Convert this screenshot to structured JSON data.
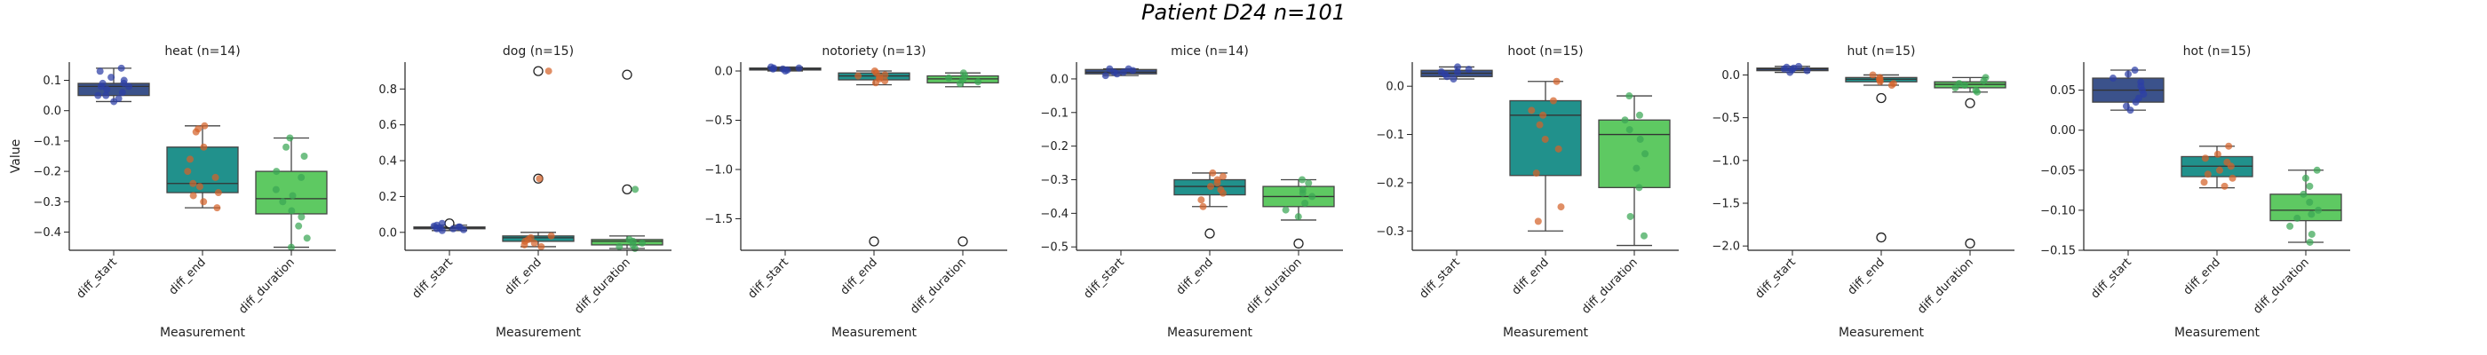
{
  "figure": {
    "suptitle": "Patient D24 n=101",
    "y_label": "Value",
    "x_label": "Measurement"
  },
  "colors": {
    "diff_start": "#3b528b",
    "diff_end": "#21918c",
    "diff_duration": "#5ec962",
    "start_points": "#2c3fa6",
    "end_points": "#d4622a",
    "duration_points": "#3aa655"
  },
  "chart_data": [
    {
      "type": "box",
      "title": "heat (n=14)",
      "categories": [
        "diff_start",
        "diff_end",
        "diff_duration"
      ],
      "ylim": [
        -0.46,
        0.16
      ],
      "yticks": [
        0.1,
        0.0,
        -0.1,
        -0.2,
        -0.3,
        -0.4
      ],
      "ytick_labels": [
        "0.1",
        "0.0",
        "−0.1",
        "−0.2",
        "−0.3",
        "−0.4"
      ],
      "boxes": [
        {
          "q1": 0.05,
          "median": 0.08,
          "q3": 0.09,
          "whislo": 0.03,
          "whishi": 0.14,
          "fliers": []
        },
        {
          "q1": -0.27,
          "median": -0.24,
          "q3": -0.12,
          "whislo": -0.32,
          "whishi": -0.05,
          "fliers": []
        },
        {
          "q1": -0.34,
          "median": -0.29,
          "q3": -0.2,
          "whislo": -0.45,
          "whishi": -0.09,
          "fliers": []
        }
      ],
      "points": [
        [
          0.14,
          0.13,
          0.11,
          0.1,
          0.09,
          0.09,
          0.08,
          0.08,
          0.07,
          0.06,
          0.05,
          0.05,
          0.04,
          0.03
        ],
        [
          -0.05,
          -0.06,
          -0.07,
          -0.12,
          -0.16,
          -0.2,
          -0.22,
          -0.24,
          -0.25,
          -0.27,
          -0.28,
          -0.3,
          -0.32
        ],
        [
          -0.09,
          -0.12,
          -0.15,
          -0.2,
          -0.22,
          -0.26,
          -0.28,
          -0.3,
          -0.33,
          -0.35,
          -0.38,
          -0.42,
          -0.45
        ]
      ]
    },
    {
      "type": "box",
      "title": "dog (n=15)",
      "categories": [
        "diff_start",
        "diff_end",
        "diff_duration"
      ],
      "ylim": [
        -0.1,
        0.95
      ],
      "yticks": [
        0.8,
        0.6,
        0.4,
        0.2,
        0.0
      ],
      "ytick_labels": [
        "0.8",
        "0.6",
        "0.4",
        "0.2",
        "0.0"
      ],
      "boxes": [
        {
          "q1": 0.02,
          "median": 0.025,
          "q3": 0.03,
          "whislo": 0.01,
          "whishi": 0.04,
          "fliers": [
            0.05
          ]
        },
        {
          "q1": -0.05,
          "median": -0.03,
          "q3": -0.02,
          "whislo": -0.08,
          "whishi": 0.0,
          "fliers": [
            0.9,
            0.3
          ]
        },
        {
          "q1": -0.07,
          "median": -0.05,
          "q3": -0.04,
          "whislo": -0.09,
          "whishi": -0.02,
          "fliers": [
            0.88,
            0.24
          ]
        }
      ],
      "points": [
        [
          0.01,
          0.015,
          0.02,
          0.02,
          0.025,
          0.03,
          0.03,
          0.035,
          0.04,
          0.05
        ],
        [
          0.9,
          0.3,
          -0.02,
          -0.03,
          -0.04,
          -0.05,
          -0.06,
          -0.07,
          -0.08
        ],
        [
          0.24,
          -0.04,
          -0.05,
          -0.06,
          -0.07,
          -0.08,
          -0.09
        ]
      ]
    },
    {
      "type": "box",
      "title": "notoriety (n=13)",
      "categories": [
        "diff_start",
        "diff_end",
        "diff_duration"
      ],
      "ylim": [
        -1.82,
        0.09
      ],
      "yticks": [
        0.0,
        -0.5,
        -1.0,
        -1.5
      ],
      "ytick_labels": [
        "0.0",
        "−0.5",
        "−1.0",
        "−1.5"
      ],
      "boxes": [
        {
          "q1": 0.01,
          "median": 0.02,
          "q3": 0.03,
          "whislo": 0.0,
          "whishi": 0.04,
          "fliers": []
        },
        {
          "q1": -0.09,
          "median": -0.05,
          "q3": -0.02,
          "whislo": -0.14,
          "whishi": 0.0,
          "fliers": [
            -1.73
          ]
        },
        {
          "q1": -0.12,
          "median": -0.08,
          "q3": -0.05,
          "whislo": -0.16,
          "whishi": -0.02,
          "fliers": [
            -1.73
          ]
        }
      ],
      "points": [
        [
          0.0,
          0.01,
          0.02,
          0.02,
          0.03,
          0.03,
          0.04
        ],
        [
          0.0,
          -0.02,
          -0.04,
          -0.05,
          -0.06,
          -0.08,
          -0.1,
          -0.12
        ],
        [
          -0.02,
          -0.05,
          -0.07,
          -0.09,
          -0.11,
          -0.13
        ]
      ]
    },
    {
      "type": "box",
      "title": "mice (n=14)",
      "categories": [
        "diff_start",
        "diff_end",
        "diff_duration"
      ],
      "ylim": [
        -0.51,
        0.05
      ],
      "yticks": [
        0.0,
        -0.1,
        -0.2,
        -0.3,
        -0.4,
        -0.5
      ],
      "ytick_labels": [
        "0.0",
        "−0.1",
        "−0.2",
        "−0.3",
        "−0.4",
        "−0.5"
      ],
      "boxes": [
        {
          "q1": 0.015,
          "median": 0.02,
          "q3": 0.028,
          "whislo": 0.01,
          "whishi": 0.03,
          "fliers": []
        },
        {
          "q1": -0.345,
          "median": -0.32,
          "q3": -0.3,
          "whislo": -0.38,
          "whishi": -0.28,
          "fliers": [
            -0.46
          ]
        },
        {
          "q1": -0.38,
          "median": -0.35,
          "q3": -0.32,
          "whislo": -0.42,
          "whishi": -0.3,
          "fliers": [
            -0.49
          ]
        }
      ],
      "points": [
        [
          0.01,
          0.015,
          0.02,
          0.02,
          0.025,
          0.03,
          0.03
        ],
        [
          -0.28,
          -0.29,
          -0.3,
          -0.31,
          -0.32,
          -0.33,
          -0.34,
          -0.36,
          -0.38
        ],
        [
          -0.3,
          -0.31,
          -0.33,
          -0.34,
          -0.35,
          -0.37,
          -0.39,
          -0.41
        ]
      ]
    },
    {
      "type": "box",
      "title": "hoot (n=15)",
      "categories": [
        "diff_start",
        "diff_end",
        "diff_duration"
      ],
      "ylim": [
        -0.34,
        0.05
      ],
      "yticks": [
        0.0,
        -0.1,
        -0.2,
        -0.3
      ],
      "ytick_labels": [
        "0.0",
        "−0.1",
        "−0.2",
        "−0.3"
      ],
      "boxes": [
        {
          "q1": 0.02,
          "median": 0.027,
          "q3": 0.033,
          "whislo": 0.015,
          "whishi": 0.04,
          "fliers": []
        },
        {
          "q1": -0.185,
          "median": -0.06,
          "q3": -0.03,
          "whislo": -0.3,
          "whishi": 0.01,
          "fliers": []
        },
        {
          "q1": -0.21,
          "median": -0.1,
          "q3": -0.07,
          "whislo": -0.33,
          "whishi": -0.02,
          "fliers": []
        }
      ],
      "points": [
        [
          0.015,
          0.02,
          0.025,
          0.03,
          0.03,
          0.035,
          0.04
        ],
        [
          0.01,
          -0.03,
          -0.05,
          -0.06,
          -0.08,
          -0.11,
          -0.13,
          -0.18,
          -0.25,
          -0.28
        ],
        [
          -0.02,
          -0.06,
          -0.07,
          -0.09,
          -0.11,
          -0.14,
          -0.17,
          -0.21,
          -0.27,
          -0.31
        ]
      ]
    },
    {
      "type": "box",
      "title": "hut (n=15)",
      "categories": [
        "diff_start",
        "diff_end",
        "diff_duration"
      ],
      "ylim": [
        -2.05,
        0.15
      ],
      "yticks": [
        0.0,
        -0.5,
        -1.0,
        -1.5,
        -2.0
      ],
      "ytick_labels": [
        "0.0",
        "−0.5",
        "−1.0",
        "−1.5",
        "−2.0"
      ],
      "boxes": [
        {
          "q1": 0.05,
          "median": 0.07,
          "q3": 0.08,
          "whislo": 0.03,
          "whishi": 0.1,
          "fliers": []
        },
        {
          "q1": -0.08,
          "median": -0.05,
          "q3": -0.03,
          "whislo": -0.12,
          "whishi": 0.0,
          "fliers": [
            -0.27,
            -1.9
          ]
        },
        {
          "q1": -0.15,
          "median": -0.11,
          "q3": -0.08,
          "whislo": -0.2,
          "whishi": -0.03,
          "fliers": [
            -0.33,
            -1.97
          ]
        }
      ],
      "points": [
        [
          0.03,
          0.05,
          0.06,
          0.07,
          0.08,
          0.09,
          0.1
        ],
        [
          0.0,
          -0.03,
          -0.05,
          -0.06,
          -0.08,
          -0.1,
          -0.12
        ],
        [
          -0.03,
          -0.07,
          -0.1,
          -0.12,
          -0.15,
          -0.18,
          -0.2
        ]
      ]
    },
    {
      "type": "box",
      "title": "hot (n=15)",
      "categories": [
        "diff_start",
        "diff_end",
        "diff_duration"
      ],
      "ylim": [
        -0.15,
        0.085
      ],
      "yticks": [
        0.05,
        0.0,
        -0.05,
        -0.1,
        -0.15
      ],
      "ytick_labels": [
        "0.05",
        "0.00",
        "−0.05",
        "−0.10",
        "−0.15"
      ],
      "boxes": [
        {
          "q1": 0.035,
          "median": 0.05,
          "q3": 0.065,
          "whislo": 0.025,
          "whishi": 0.075,
          "fliers": []
        },
        {
          "q1": -0.058,
          "median": -0.045,
          "q3": -0.033,
          "whislo": -0.072,
          "whishi": -0.02,
          "fliers": []
        },
        {
          "q1": -0.113,
          "median": -0.1,
          "q3": -0.08,
          "whislo": -0.14,
          "whishi": -0.05,
          "fliers": []
        }
      ],
      "points": [
        [
          0.075,
          0.07,
          0.065,
          0.06,
          0.055,
          0.05,
          0.045,
          0.04,
          0.035,
          0.03,
          0.025
        ],
        [
          -0.02,
          -0.03,
          -0.035,
          -0.04,
          -0.045,
          -0.05,
          -0.055,
          -0.06,
          -0.065,
          -0.07
        ],
        [
          -0.05,
          -0.06,
          -0.07,
          -0.08,
          -0.09,
          -0.1,
          -0.105,
          -0.11,
          -0.12,
          -0.13,
          -0.14
        ]
      ]
    }
  ]
}
